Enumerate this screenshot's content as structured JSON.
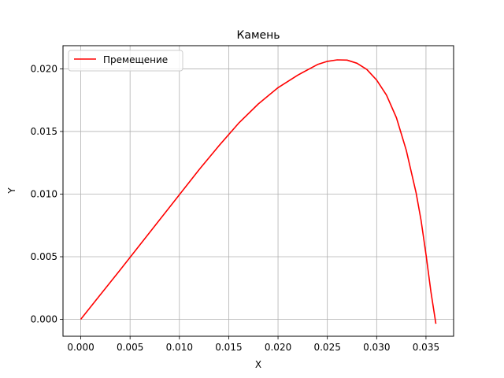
{
  "chart_data": {
    "type": "line",
    "title": "Камень",
    "xlabel": "X",
    "ylabel": "Y",
    "xlim": [
      -0.0018,
      0.0378
    ],
    "ylim": [
      -0.00135,
      0.02185
    ],
    "grid": true,
    "legend_placement": "top-left",
    "x_ticks": [
      "0.000",
      "0.005",
      "0.010",
      "0.015",
      "0.020",
      "0.025",
      "0.030",
      "0.035"
    ],
    "x_tick_values": [
      0,
      0.005,
      0.01,
      0.015,
      0.02,
      0.025,
      0.03,
      0.035
    ],
    "y_ticks": [
      "0.000",
      "0.005",
      "0.010",
      "0.015",
      "0.020"
    ],
    "y_tick_values": [
      0,
      0.005,
      0.01,
      0.015,
      0.02
    ],
    "series": [
      {
        "name": "Премещение",
        "color": "#ff0000",
        "x": [
          0.0,
          0.002,
          0.004,
          0.006,
          0.008,
          0.01,
          0.012,
          0.014,
          0.016,
          0.018,
          0.02,
          0.022,
          0.024,
          0.025,
          0.026,
          0.027,
          0.028,
          0.029,
          0.03,
          0.031,
          0.032,
          0.033,
          0.034,
          0.0345,
          0.035,
          0.0355,
          0.036
        ],
        "y": [
          0.0,
          0.00198,
          0.00395,
          0.00595,
          0.00795,
          0.00995,
          0.01195,
          0.01385,
          0.01565,
          0.0172,
          0.0185,
          0.0195,
          0.02035,
          0.0206,
          0.02072,
          0.0207,
          0.02045,
          0.01995,
          0.0191,
          0.0179,
          0.0161,
          0.0135,
          0.0101,
          0.0079,
          0.0052,
          0.0022,
          -0.00035
        ]
      }
    ]
  }
}
